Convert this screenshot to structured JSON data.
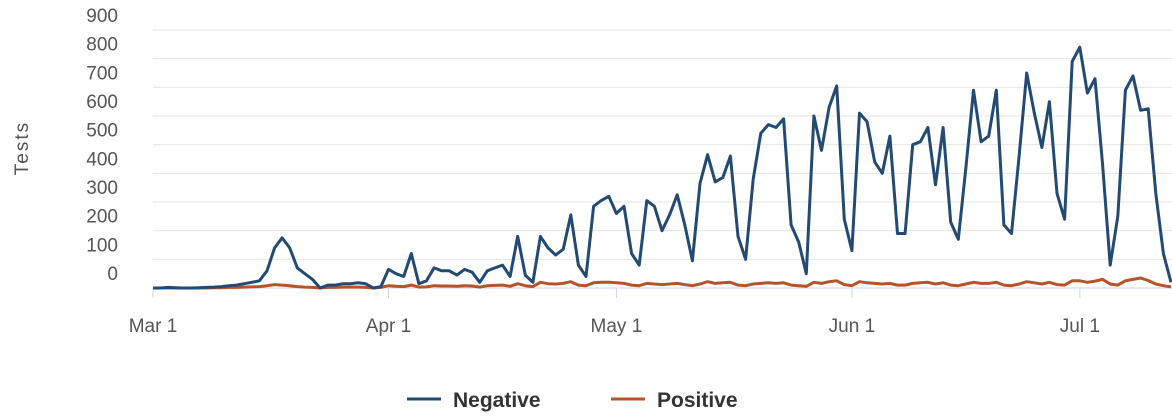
{
  "chart_data": {
    "type": "line",
    "ylabel": "Tests",
    "categories": [
      "Mar 1",
      "Mar 2",
      "Mar 3",
      "Mar 4",
      "Mar 5",
      "Mar 6",
      "Mar 7",
      "Mar 8",
      "Mar 9",
      "Mar 10",
      "Mar 11",
      "Mar 12",
      "Mar 13",
      "Mar 14",
      "Mar 15",
      "Mar 16",
      "Mar 17",
      "Mar 18",
      "Mar 19",
      "Mar 20",
      "Mar 21",
      "Mar 22",
      "Mar 23",
      "Mar 24",
      "Mar 25",
      "Mar 26",
      "Mar 27",
      "Mar 28",
      "Mar 29",
      "Mar 30",
      "Mar 31",
      "Apr 1",
      "Apr 2",
      "Apr 3",
      "Apr 4",
      "Apr 5",
      "Apr 6",
      "Apr 7",
      "Apr 8",
      "Apr 9",
      "Apr 10",
      "Apr 11",
      "Apr 12",
      "Apr 13",
      "Apr 14",
      "Apr 15",
      "Apr 16",
      "Apr 17",
      "Apr 18",
      "Apr 19",
      "Apr 20",
      "Apr 21",
      "Apr 22",
      "Apr 23",
      "Apr 24",
      "Apr 25",
      "Apr 26",
      "Apr 27",
      "Apr 28",
      "Apr 29",
      "Apr 30",
      "May 1",
      "May 2",
      "May 3",
      "May 4",
      "May 5",
      "May 6",
      "May 7",
      "May 8",
      "May 9",
      "May 10",
      "May 11",
      "May 12",
      "May 13",
      "May 14",
      "May 15",
      "May 16",
      "May 17",
      "May 18",
      "May 19",
      "May 20",
      "May 21",
      "May 22",
      "May 23",
      "May 24",
      "May 25",
      "May 26",
      "May 27",
      "May 28",
      "May 29",
      "May 30",
      "May 31",
      "Jun 1",
      "Jun 2",
      "Jun 3",
      "Jun 4",
      "Jun 5",
      "Jun 6",
      "Jun 7",
      "Jun 8",
      "Jun 9",
      "Jun 10",
      "Jun 11",
      "Jun 12",
      "Jun 13",
      "Jun 14",
      "Jun 15",
      "Jun 16",
      "Jun 17",
      "Jun 18",
      "Jun 19",
      "Jun 20",
      "Jun 21",
      "Jun 22",
      "Jun 23",
      "Jun 24",
      "Jun 25",
      "Jun 26",
      "Jun 27",
      "Jun 28",
      "Jun 29",
      "Jun 30",
      "Jul 1",
      "Jul 2",
      "Jul 3",
      "Jul 4",
      "Jul 5",
      "Jul 6",
      "Jul 7",
      "Jul 8",
      "Jul 9",
      "Jul 10",
      "Jul 11",
      "Jul 12",
      "Jul 13"
    ],
    "xticks": [
      "Mar 1",
      "Apr 1",
      "May 1",
      "Jun 1",
      "Jul 1"
    ],
    "series": [
      {
        "name": "Negative",
        "color": "#234a72",
        "values": [
          0,
          0,
          2,
          1,
          0,
          0,
          1,
          2,
          3,
          5,
          8,
          10,
          15,
          20,
          25,
          60,
          140,
          175,
          140,
          70,
          50,
          30,
          0,
          10,
          10,
          15,
          15,
          18,
          15,
          0,
          5,
          65,
          50,
          40,
          120,
          15,
          25,
          70,
          60,
          60,
          45,
          65,
          55,
          20,
          60,
          70,
          80,
          40,
          180,
          45,
          20,
          180,
          140,
          115,
          135,
          255,
          80,
          40,
          285,
          305,
          320,
          260,
          285,
          120,
          80,
          305,
          285,
          200,
          255,
          325,
          220,
          95,
          365,
          465,
          370,
          385,
          460,
          180,
          100,
          380,
          540,
          570,
          560,
          590,
          220,
          160,
          50,
          600,
          480,
          630,
          705,
          240,
          130,
          610,
          580,
          440,
          400,
          530,
          190,
          190,
          500,
          510,
          560,
          360,
          560,
          230,
          170,
          420,
          690,
          510,
          530,
          690,
          220,
          190,
          460,
          750,
          610,
          490,
          650,
          330,
          240,
          790,
          840,
          680,
          730,
          430,
          80,
          250,
          690,
          740,
          620,
          625,
          330,
          120,
          20
        ]
      },
      {
        "name": "Positive",
        "color": "#b5542a",
        "values": [
          0,
          0,
          0,
          0,
          0,
          0,
          0,
          0,
          1,
          1,
          2,
          2,
          3,
          4,
          5,
          8,
          12,
          10,
          8,
          5,
          3,
          2,
          0,
          2,
          2,
          3,
          3,
          3,
          2,
          0,
          2,
          8,
          6,
          5,
          10,
          3,
          4,
          8,
          7,
          7,
          6,
          8,
          7,
          3,
          8,
          9,
          10,
          6,
          15,
          8,
          5,
          20,
          15,
          14,
          16,
          22,
          10,
          8,
          18,
          20,
          20,
          18,
          16,
          10,
          8,
          16,
          14,
          12,
          14,
          16,
          12,
          8,
          14,
          22,
          16,
          18,
          20,
          10,
          8,
          14,
          16,
          18,
          16,
          18,
          10,
          8,
          6,
          20,
          16,
          22,
          25,
          12,
          8,
          22,
          18,
          16,
          14,
          16,
          10,
          10,
          16,
          18,
          20,
          14,
          18,
          10,
          8,
          14,
          20,
          16,
          16,
          20,
          10,
          8,
          14,
          22,
          18,
          14,
          20,
          12,
          10,
          25,
          25,
          20,
          24,
          30,
          14,
          10,
          25,
          30,
          35,
          26,
          14,
          8,
          4
        ]
      }
    ],
    "ylim": [
      0,
      900
    ],
    "yticks": [
      0,
      100,
      200,
      300,
      400,
      500,
      600,
      700,
      800,
      900
    ],
    "grid": true,
    "legend": "bottom"
  }
}
